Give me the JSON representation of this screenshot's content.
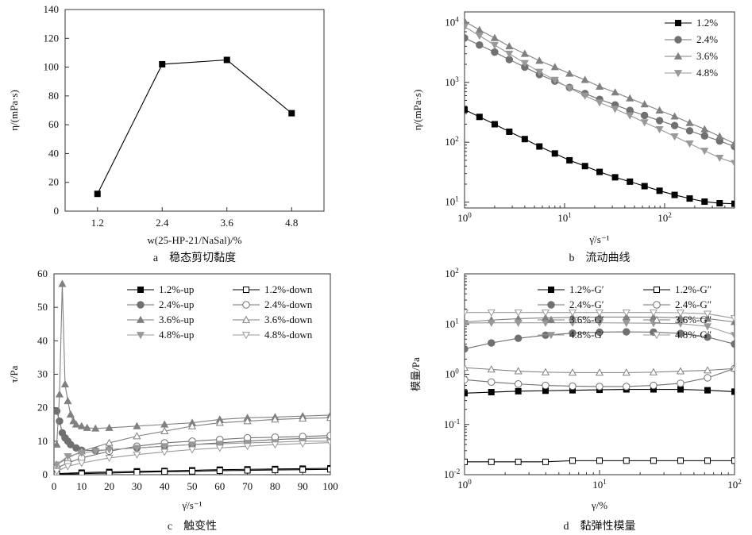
{
  "chart_data": [
    {
      "panel": "a",
      "type": "line",
      "caption": "a　稳态剪切黏度",
      "xlabel": "w(25-HP-21/NaSal)/%",
      "ylabel": "η/(mPa·s)",
      "x": [
        1.2,
        2.4,
        3.6,
        4.8
      ],
      "xticks": [
        "1.2",
        "2.4",
        "3.6",
        "4.8"
      ],
      "yticks": [
        "0",
        "20",
        "40",
        "60",
        "80",
        "100",
        "120",
        "140"
      ],
      "ylim": [
        0,
        140
      ],
      "series": [
        {
          "values": [
            12,
            102,
            105,
            68
          ],
          "color": "#000000",
          "marker": "square"
        }
      ]
    },
    {
      "panel": "b",
      "type": "line",
      "scale": "log-log",
      "caption": "b　流动曲线",
      "xlabel": "γ̇/s⁻¹",
      "ylabel": "η/(mPa·s)",
      "xlim": [
        1,
        500
      ],
      "ylim": [
        8,
        15000
      ],
      "legend_position": "top-right",
      "series": [
        {
          "name": "1.2%",
          "color": "#000000",
          "marker": "square",
          "x": [
            1,
            1.41,
            2,
            2.8,
            4,
            5.6,
            8,
            11.2,
            16,
            22.4,
            32,
            45,
            63,
            89,
            126,
            178,
            251,
            355,
            500
          ],
          "values": [
            350,
            265,
            200,
            150,
            113,
            85,
            65,
            50,
            40,
            32,
            26,
            22,
            18.5,
            15.5,
            13.2,
            11.5,
            10.2,
            9.6,
            9.4
          ]
        },
        {
          "name": "2.4%",
          "color": "#707070",
          "marker": "circle",
          "x": [
            1,
            1.41,
            2,
            2.8,
            4,
            5.6,
            8,
            11.2,
            16,
            22.4,
            32,
            45,
            63,
            89,
            126,
            178,
            251,
            355,
            500
          ],
          "values": [
            5500,
            4200,
            3200,
            2400,
            1800,
            1350,
            1050,
            820,
            650,
            520,
            420,
            340,
            280,
            230,
            190,
            155,
            128,
            105,
            85
          ]
        },
        {
          "name": "3.6%",
          "color": "#808080",
          "marker": "triangle",
          "x": [
            1,
            1.41,
            2,
            2.8,
            4,
            5.6,
            8,
            11.2,
            16,
            22.4,
            32,
            45,
            63,
            89,
            126,
            178,
            251,
            355,
            500
          ],
          "values": [
            10500,
            7500,
            5500,
            4000,
            3000,
            2300,
            1800,
            1400,
            1100,
            850,
            680,
            540,
            430,
            340,
            270,
            210,
            165,
            125,
            95
          ]
        },
        {
          "name": "4.8%",
          "color": "#999999",
          "marker": "triangle-down",
          "x": [
            1,
            1.41,
            2,
            2.8,
            4,
            5.6,
            8,
            11.2,
            16,
            22.4,
            32,
            45,
            63,
            89,
            126,
            178,
            251,
            355,
            500
          ],
          "values": [
            8500,
            6000,
            4200,
            3000,
            2100,
            1500,
            1100,
            800,
            600,
            460,
            360,
            280,
            215,
            165,
            125,
            95,
            72,
            55,
            45
          ]
        }
      ]
    },
    {
      "panel": "c",
      "type": "line",
      "caption": "c　触变性",
      "xlabel": "γ̇/s⁻¹",
      "ylabel": "τ/Pa",
      "xticks": [
        "0",
        "10",
        "20",
        "30",
        "40",
        "50",
        "60",
        "70",
        "80",
        "90",
        "100"
      ],
      "yticks": [
        "0",
        "10",
        "20",
        "30",
        "40",
        "50",
        "60"
      ],
      "xlim": [
        0,
        100
      ],
      "ylim": [
        0,
        60
      ],
      "legend_position": "top",
      "series": [
        {
          "name": "1.2%-up",
          "color": "#000000",
          "marker": "square",
          "x": [
            1,
            10,
            20,
            30,
            40,
            50,
            60,
            70,
            80,
            90,
            100
          ],
          "values": [
            0.3,
            0.6,
            0.8,
            1.0,
            1.1,
            1.3,
            1.5,
            1.6,
            1.7,
            1.8,
            1.9
          ]
        },
        {
          "name": "1.2%-down",
          "color": "#000000",
          "marker": "square-open",
          "x": [
            1,
            10,
            20,
            30,
            40,
            50,
            60,
            70,
            80,
            90,
            100
          ],
          "values": [
            0.1,
            0.3,
            0.5,
            0.7,
            0.9,
            1.0,
            1.2,
            1.3,
            1.4,
            1.5,
            1.6
          ]
        },
        {
          "name": "2.4%-up",
          "color": "#707070",
          "marker": "circle",
          "x": [
            1,
            2,
            3,
            4,
            5,
            6,
            8,
            10,
            15,
            20,
            30,
            40,
            50,
            60,
            70,
            80,
            90,
            100
          ],
          "values": [
            19,
            16,
            12.5,
            11,
            10,
            9,
            8,
            7.3,
            7.2,
            7.5,
            8,
            8.5,
            9,
            9.5,
            10,
            10.5,
            10.8,
            11
          ]
        },
        {
          "name": "2.4%-down",
          "color": "#707070",
          "marker": "circle-open",
          "x": [
            1,
            5,
            10,
            20,
            30,
            40,
            50,
            60,
            70,
            80,
            90,
            100
          ],
          "values": [
            2,
            3.5,
            5,
            7,
            8.5,
            9.5,
            10,
            10.5,
            11,
            11.2,
            11.4,
            11.7
          ]
        },
        {
          "name": "3.6%-up",
          "color": "#808080",
          "marker": "triangle",
          "x": [
            1,
            2,
            3,
            4,
            5,
            6,
            7,
            8,
            10,
            12,
            15,
            20,
            30,
            40,
            50,
            60,
            70,
            80,
            90,
            100
          ],
          "values": [
            9,
            24,
            57,
            27,
            22,
            18,
            16,
            15,
            14.5,
            14,
            13.8,
            14,
            14.5,
            15,
            15.5,
            16.5,
            17,
            17.2,
            17.5,
            17.8
          ]
        },
        {
          "name": "3.6%-down",
          "color": "#808080",
          "marker": "triangle-open",
          "x": [
            1,
            5,
            10,
            20,
            30,
            40,
            50,
            60,
            70,
            80,
            90,
            100
          ],
          "values": [
            3,
            5,
            7,
            9.5,
            11.5,
            13,
            14.5,
            15.5,
            16,
            16.5,
            16.8,
            17
          ]
        },
        {
          "name": "4.8%-up",
          "color": "#999999",
          "marker": "triangle-down",
          "x": [
            1,
            5,
            10,
            15,
            20,
            30,
            40,
            50,
            60,
            70,
            80,
            90,
            100
          ],
          "values": [
            3,
            5.5,
            6.5,
            7,
            7.5,
            8,
            8.5,
            9,
            9.2,
            9.5,
            9.7,
            10,
            10
          ]
        },
        {
          "name": "4.8%-down",
          "color": "#999999",
          "marker": "triangle-down-open",
          "x": [
            1,
            5,
            10,
            20,
            30,
            40,
            50,
            60,
            70,
            80,
            90,
            100
          ],
          "values": [
            1,
            2.5,
            3.5,
            5,
            6,
            6.8,
            7.5,
            8,
            8.5,
            9,
            9.3,
            9.6
          ]
        }
      ]
    },
    {
      "panel": "d",
      "type": "line",
      "scale": "log-log",
      "caption": "d　黏弹性模量",
      "xlabel": "γ/%",
      "ylabel": "模量/Pa",
      "xlim": [
        1,
        100
      ],
      "ylim": [
        0.01,
        100
      ],
      "legend_position": "top",
      "series": [
        {
          "name": "1.2%-G′",
          "color": "#000000",
          "marker": "square",
          "x": [
            1,
            1.58,
            2.5,
            3.98,
            6.31,
            10,
            15.8,
            25.1,
            39.8,
            63.1,
            100
          ],
          "values": [
            0.42,
            0.44,
            0.46,
            0.47,
            0.48,
            0.49,
            0.5,
            0.5,
            0.5,
            0.48,
            0.45
          ]
        },
        {
          "name": "1.2%-G″",
          "color": "#000000",
          "marker": "square-open",
          "x": [
            1,
            1.58,
            2.5,
            3.98,
            6.31,
            10,
            15.8,
            25.1,
            39.8,
            63.1,
            100
          ],
          "values": [
            0.018,
            0.018,
            0.018,
            0.018,
            0.019,
            0.019,
            0.019,
            0.019,
            0.019,
            0.019,
            0.019
          ]
        },
        {
          "name": "2.4%-G′",
          "color": "#707070",
          "marker": "circle",
          "x": [
            1,
            1.58,
            2.5,
            3.98,
            6.31,
            10,
            15.8,
            25.1,
            39.8,
            63.1,
            100
          ],
          "values": [
            3.2,
            4.2,
            5.2,
            6,
            6.6,
            6.9,
            7,
            6.9,
            6.5,
            5.5,
            4
          ]
        },
        {
          "name": "2.4%-G″",
          "color": "#707070",
          "marker": "circle-open",
          "x": [
            1,
            1.58,
            2.5,
            3.98,
            6.31,
            10,
            15.8,
            25.1,
            39.8,
            63.1,
            100
          ],
          "values": [
            0.78,
            0.7,
            0.64,
            0.6,
            0.58,
            0.57,
            0.57,
            0.6,
            0.66,
            0.85,
            1.3
          ]
        },
        {
          "name": "3.6%-G′",
          "color": "#808080",
          "marker": "triangle",
          "x": [
            1,
            1.58,
            2.5,
            3.98,
            6.31,
            10,
            15.8,
            25.1,
            39.8,
            63.1,
            100
          ],
          "values": [
            11,
            12,
            12.8,
            13.3,
            13.6,
            13.8,
            13.8,
            13.7,
            13.4,
            12.8,
            11
          ]
        },
        {
          "name": "3.6%-G″",
          "color": "#808080",
          "marker": "triangle-open",
          "x": [
            1,
            1.58,
            2.5,
            3.98,
            6.31,
            10,
            15.8,
            25.1,
            39.8,
            63.1,
            100
          ],
          "values": [
            1.35,
            1.25,
            1.15,
            1.1,
            1.08,
            1.08,
            1.08,
            1.1,
            1.15,
            1.2,
            1.3
          ]
        },
        {
          "name": "4.8%-G′",
          "color": "#999999",
          "marker": "triangle-down",
          "x": [
            1,
            1.58,
            2.5,
            3.98,
            6.31,
            10,
            15.8,
            25.1,
            39.8,
            63.1,
            100
          ],
          "values": [
            10.5,
            10.6,
            10.6,
            10.6,
            10.6,
            10.6,
            10.5,
            10.4,
            10.2,
            9,
            6
          ]
        },
        {
          "name": "4.8%-G″",
          "color": "#999999",
          "marker": "triangle-down-open",
          "x": [
            1,
            1.58,
            2.5,
            3.98,
            6.31,
            10,
            15.8,
            25.1,
            39.8,
            63.1,
            100
          ],
          "values": [
            17,
            17,
            17,
            17,
            17,
            17,
            17,
            17,
            16.8,
            16,
            13
          ]
        }
      ]
    }
  ]
}
